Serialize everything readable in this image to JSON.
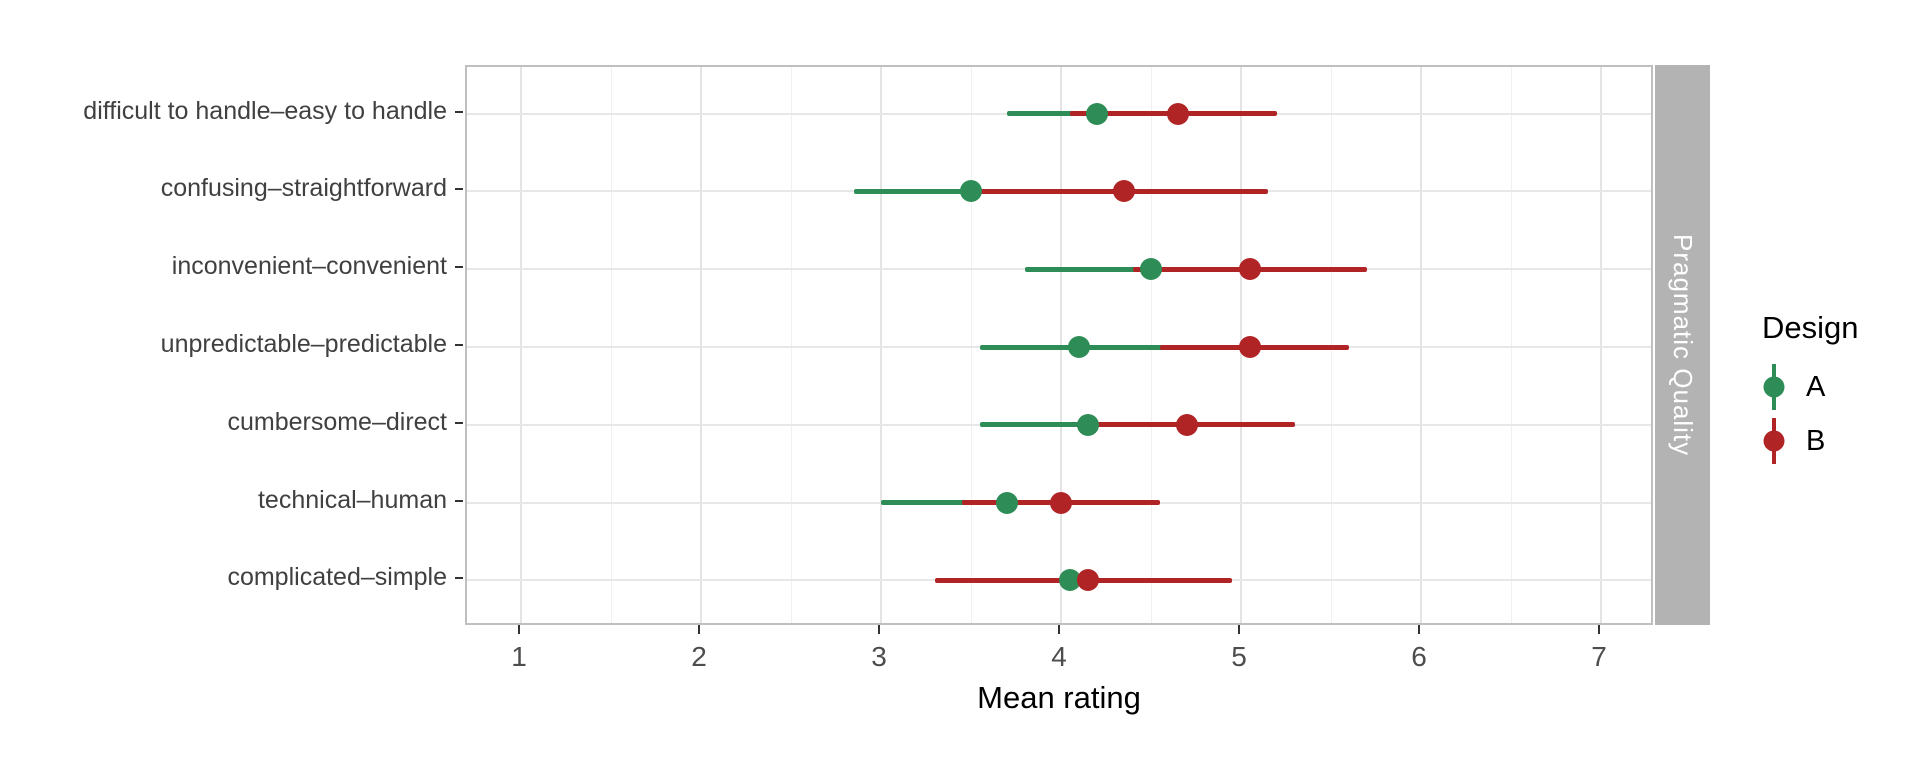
{
  "chart_data": {
    "type": "scatter",
    "mark": "pointrange",
    "title": "",
    "xlabel": "Mean rating",
    "ylabel": "",
    "xlim": [
      0.7,
      7.3
    ],
    "x_ticks": [
      1,
      2,
      3,
      4,
      5,
      6,
      7
    ],
    "minor_gridlines_x": [
      1.5,
      2.5,
      3.5,
      4.5,
      5.5,
      6.5
    ],
    "grid": "on",
    "legend_title": "Design",
    "legend_position": "right",
    "facet_strip_right": "Pragmatic Quality",
    "categories": [
      "difficult to handle–easy to handle",
      "confusing–straightforward",
      "inconvenient–convenient",
      "unpredictable–predictable",
      "cumbersome–direct",
      "technical–human",
      "complicated–simple"
    ],
    "series": [
      {
        "name": "A",
        "color": "#2E8C57",
        "means": [
          4.2,
          3.5,
          4.5,
          4.1,
          4.15,
          3.7,
          4.05
        ],
        "ci_low": [
          3.7,
          2.85,
          3.8,
          3.55,
          3.55,
          3.0,
          3.55
        ],
        "ci_high": [
          4.7,
          4.15,
          5.2,
          4.6,
          4.75,
          4.4,
          4.55
        ]
      },
      {
        "name": "B",
        "color": "#B02426",
        "means": [
          4.65,
          4.35,
          5.05,
          5.05,
          4.7,
          4.0,
          4.15
        ],
        "ci_low": [
          4.05,
          3.55,
          4.4,
          4.55,
          4.15,
          3.45,
          3.3
        ],
        "ci_high": [
          5.2,
          5.15,
          5.7,
          5.6,
          5.3,
          4.55,
          4.95
        ]
      }
    ],
    "colors": {
      "series_a": "#2E8C57",
      "series_b": "#B02426",
      "strip_background": "#B3B3B3",
      "strip_text": "#FFFFFF",
      "gridline_major": "#E4E4E4",
      "gridline_minor": "#F0F0F0",
      "panel_border": "#BFBFBF",
      "axis_text": "#4D4D4D"
    }
  }
}
